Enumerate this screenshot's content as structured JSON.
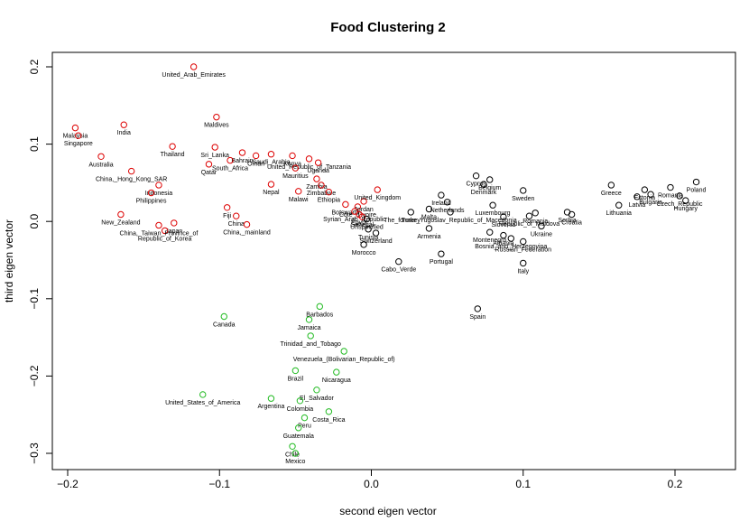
{
  "chart_data": {
    "type": "scatter",
    "title": "Food Clustering 2",
    "xlabel": "second eigen vector",
    "ylabel": "third eigen vector",
    "xlim": [
      -0.2,
      0.2
    ],
    "ylim": [
      -0.3,
      0.2
    ],
    "xticks": [
      -0.2,
      -0.1,
      0.0,
      0.1,
      0.2
    ],
    "xtick_labels": [
      "−0.2",
      "−0.1",
      "0.0",
      "0.1",
      "0.2"
    ],
    "yticks": [
      -0.3,
      -0.2,
      -0.1,
      0.0,
      0.1,
      0.2
    ],
    "ytick_labels": [
      "−0.3",
      "−0.2",
      "−0.1",
      "0.0",
      "0.1",
      "0.2"
    ],
    "grid": false,
    "legend": "none",
    "marker": "open-circle",
    "colors": {
      "red": "#dd0000",
      "black": "#000000",
      "green": "#22bb22"
    },
    "series": [
      {
        "color": "red",
        "points": [
          {
            "x": -0.117,
            "y": 0.2,
            "label": "United_Arab_Emirates"
          },
          {
            "x": -0.195,
            "y": 0.121,
            "label": "Malaysia"
          },
          {
            "x": -0.193,
            "y": 0.111,
            "label": "Singapore"
          },
          {
            "x": -0.163,
            "y": 0.125,
            "label": "India"
          },
          {
            "x": -0.178,
            "y": 0.084,
            "label": "Australia"
          },
          {
            "x": -0.102,
            "y": 0.135,
            "label": "Maldives"
          },
          {
            "x": -0.131,
            "y": 0.097,
            "label": "Thailand"
          },
          {
            "x": -0.103,
            "y": 0.096,
            "label": "Sri_Lanka"
          },
          {
            "x": -0.107,
            "y": 0.074,
            "label": "Qatar"
          },
          {
            "x": -0.158,
            "y": 0.065,
            "label": "China,_Hong_Kong_SAR"
          },
          {
            "x": -0.085,
            "y": 0.089,
            "label": "Bahrain"
          },
          {
            "x": -0.076,
            "y": 0.085,
            "label": "Oman"
          },
          {
            "x": -0.093,
            "y": 0.079,
            "label": "South_Africa"
          },
          {
            "x": -0.066,
            "y": 0.087,
            "label": "Saudi_Arabia"
          },
          {
            "x": -0.052,
            "y": 0.085,
            "label": "Kenya"
          },
          {
            "x": -0.041,
            "y": 0.081,
            "label": "United_Republic_of_Tanzania"
          },
          {
            "x": -0.05,
            "y": 0.069,
            "label": "Mauritius"
          },
          {
            "x": -0.035,
            "y": 0.076,
            "label": "Uganda"
          },
          {
            "x": -0.14,
            "y": 0.047,
            "label": "Indonesia"
          },
          {
            "x": -0.145,
            "y": 0.037,
            "label": "Philippines"
          },
          {
            "x": -0.066,
            "y": 0.048,
            "label": "Nepal"
          },
          {
            "x": -0.036,
            "y": 0.055,
            "label": "Zambia"
          },
          {
            "x": -0.033,
            "y": 0.047,
            "label": "Zimbabwe"
          },
          {
            "x": -0.048,
            "y": 0.039,
            "label": "Malawi"
          },
          {
            "x": -0.028,
            "y": 0.038,
            "label": "Ethiopia"
          },
          {
            "x": -0.017,
            "y": 0.022,
            "label": "Botswana"
          },
          {
            "x": -0.165,
            "y": 0.009,
            "label": "New_Zealand"
          },
          {
            "x": -0.095,
            "y": 0.018,
            "label": "Fiji"
          },
          {
            "x": -0.089,
            "y": 0.007,
            "label": "China"
          },
          {
            "x": -0.082,
            "y": -0.004,
            "label": "China,_mainland"
          },
          {
            "x": -0.13,
            "y": -0.002,
            "label": "Japan"
          },
          {
            "x": -0.136,
            "y": -0.012,
            "label": "Republic_of_Korea"
          },
          {
            "x": -0.14,
            "y": -0.005,
            "label": "China,_Taiwan_Province_of"
          },
          {
            "x": -0.009,
            "y": 0.019,
            "label": "Côte_d'Ivoire"
          },
          {
            "x": -0.005,
            "y": 0.026,
            "label": "Jordan"
          },
          {
            "x": -0.011,
            "y": 0.013,
            "label": "Syrian_Arab_Republic"
          },
          {
            "x": -0.008,
            "y": 0.009,
            "label": "Egypt"
          },
          {
            "x": -0.006,
            "y": 0.006,
            "label": "Senegal"
          },
          {
            "x": 0.004,
            "y": 0.041,
            "label": "United_Kingdom"
          }
        ]
      },
      {
        "color": "black",
        "points": [
          {
            "x": -0.003,
            "y": 0.003,
            "label": "Unspecified"
          },
          {
            "x": -0.002,
            "y": -0.01,
            "label": "Tunisia"
          },
          {
            "x": 0.003,
            "y": -0.015,
            "label": "Switzerland"
          },
          {
            "x": -0.005,
            "y": -0.03,
            "label": "Morocco"
          },
          {
            "x": 0.018,
            "y": -0.052,
            "label": "Cabo_Verde"
          },
          {
            "x": 0.026,
            "y": 0.012,
            "label": "Turkey"
          },
          {
            "x": 0.069,
            "y": 0.059,
            "label": "Cyprus"
          },
          {
            "x": 0.078,
            "y": 0.054,
            "label": "Belgium"
          },
          {
            "x": 0.074,
            "y": 0.048,
            "label": "Denmark"
          },
          {
            "x": 0.1,
            "y": 0.04,
            "label": "Sweden"
          },
          {
            "x": 0.046,
            "y": 0.034,
            "label": "Ireland"
          },
          {
            "x": 0.05,
            "y": 0.025,
            "label": "Netherlands"
          },
          {
            "x": 0.038,
            "y": 0.016,
            "label": "Malta"
          },
          {
            "x": 0.052,
            "y": 0.012,
            "label": "The_former_Yugoslav_Republic_of_Macedonia"
          },
          {
            "x": 0.038,
            "y": -0.009,
            "label": "Armenia"
          },
          {
            "x": 0.046,
            "y": -0.042,
            "label": "Portugal"
          },
          {
            "x": 0.08,
            "y": 0.021,
            "label": "Luxembourg"
          },
          {
            "x": 0.078,
            "y": -0.014,
            "label": "Montenegro"
          },
          {
            "x": 0.087,
            "y": -0.018,
            "label": "Albania"
          },
          {
            "x": 0.092,
            "y": -0.022,
            "label": "Bosnia_and_Herzegovina"
          },
          {
            "x": 0.1,
            "y": -0.026,
            "label": "Russian_Federation"
          },
          {
            "x": 0.087,
            "y": 0.006,
            "label": "Slovenia"
          },
          {
            "x": 0.104,
            "y": 0.007,
            "label": "Republic_of_Moldova"
          },
          {
            "x": 0.108,
            "y": 0.011,
            "label": "Romania"
          },
          {
            "x": 0.112,
            "y": -0.006,
            "label": "Ukraine"
          },
          {
            "x": 0.129,
            "y": 0.012,
            "label": "Serbia"
          },
          {
            "x": 0.132,
            "y": 0.009,
            "label": "Croatia"
          },
          {
            "x": 0.1,
            "y": -0.054,
            "label": "Italy"
          },
          {
            "x": 0.07,
            "y": -0.113,
            "label": "Spain"
          },
          {
            "x": 0.158,
            "y": 0.047,
            "label": "Greece"
          },
          {
            "x": 0.163,
            "y": 0.021,
            "label": "Lithuania"
          },
          {
            "x": 0.18,
            "y": 0.041,
            "label": "Estonia"
          },
          {
            "x": 0.175,
            "y": 0.032,
            "label": "Latvia"
          },
          {
            "x": 0.184,
            "y": 0.035,
            "label": "Bulgaria"
          },
          {
            "x": 0.197,
            "y": 0.044,
            "label": "Romania"
          },
          {
            "x": 0.203,
            "y": 0.033,
            "label": "Czech_Republic"
          },
          {
            "x": 0.207,
            "y": 0.027,
            "label": "Hungary"
          },
          {
            "x": 0.214,
            "y": 0.051,
            "label": "Poland"
          }
        ]
      },
      {
        "color": "green",
        "points": [
          {
            "x": -0.097,
            "y": -0.123,
            "label": "Canada"
          },
          {
            "x": -0.111,
            "y": -0.224,
            "label": "United_States_of_America"
          },
          {
            "x": -0.034,
            "y": -0.11,
            "label": "Barbados"
          },
          {
            "x": -0.041,
            "y": -0.127,
            "label": "Jamaica"
          },
          {
            "x": -0.04,
            "y": -0.148,
            "label": "Trinidad_and_Tobago"
          },
          {
            "x": -0.018,
            "y": -0.168,
            "label": "Venezuela_(Bolivarian_Republic_of)"
          },
          {
            "x": -0.05,
            "y": -0.193,
            "label": "Brazil"
          },
          {
            "x": -0.023,
            "y": -0.195,
            "label": "Nicaragua"
          },
          {
            "x": -0.036,
            "y": -0.218,
            "label": "El_Salvador"
          },
          {
            "x": -0.066,
            "y": -0.229,
            "label": "Argentina"
          },
          {
            "x": -0.047,
            "y": -0.232,
            "label": "Colombia"
          },
          {
            "x": -0.028,
            "y": -0.246,
            "label": "Costa_Rica"
          },
          {
            "x": -0.044,
            "y": -0.254,
            "label": "Peru"
          },
          {
            "x": -0.048,
            "y": -0.267,
            "label": "Guatemala"
          },
          {
            "x": -0.052,
            "y": -0.291,
            "label": "Chile"
          },
          {
            "x": -0.05,
            "y": -0.3,
            "label": "Mexico"
          }
        ]
      }
    ]
  }
}
